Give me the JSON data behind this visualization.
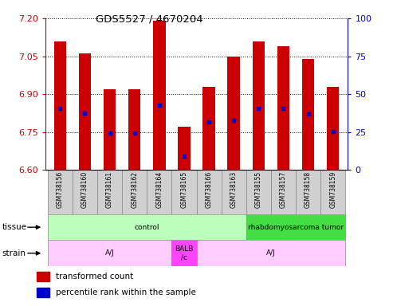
{
  "title": "GDS5527 / 4670204",
  "samples": [
    "GSM738156",
    "GSM738160",
    "GSM738161",
    "GSM738162",
    "GSM738164",
    "GSM738165",
    "GSM738166",
    "GSM738163",
    "GSM738155",
    "GSM738157",
    "GSM738158",
    "GSM738159"
  ],
  "bar_bottom": 6.6,
  "bar_tops": [
    7.11,
    7.06,
    6.92,
    6.92,
    7.19,
    6.77,
    6.93,
    7.05,
    7.11,
    7.09,
    7.04,
    6.93
  ],
  "percentile_values": [
    6.845,
    6.825,
    6.745,
    6.745,
    6.855,
    6.655,
    6.79,
    6.795,
    6.845,
    6.845,
    6.82,
    6.752
  ],
  "ylim_left": [
    6.6,
    7.2
  ],
  "ylim_right": [
    0,
    100
  ],
  "yticks_left": [
    6.6,
    6.75,
    6.9,
    7.05,
    7.2
  ],
  "yticks_right": [
    0,
    25,
    50,
    75,
    100
  ],
  "bar_color": "#cc0000",
  "percentile_color": "#0000cc",
  "grid_color": "#000000",
  "tissue_data": [
    {
      "label": "control",
      "start": 0,
      "end": 8,
      "color": "#bbffbb"
    },
    {
      "label": "rhabdomyosarcoma tumor",
      "start": 8,
      "end": 12,
      "color": "#44dd44"
    }
  ],
  "strain_data": [
    {
      "label": "A/J",
      "start": 0,
      "end": 5,
      "color": "#ffccff"
    },
    {
      "label": "BALB\n/c",
      "start": 5,
      "end": 6,
      "color": "#ff44ff"
    },
    {
      "label": "A/J",
      "start": 6,
      "end": 12,
      "color": "#ffccff"
    }
  ],
  "legend_items": [
    {
      "label": "transformed count",
      "color": "#cc0000"
    },
    {
      "label": "percentile rank within the sample",
      "color": "#0000cc"
    }
  ],
  "tissue_label": "tissue",
  "strain_label": "strain",
  "left_axis_color": "#cc0000",
  "right_axis_color": "#0000cc",
  "sample_box_color": "#d0d0d0",
  "bar_width": 0.5
}
